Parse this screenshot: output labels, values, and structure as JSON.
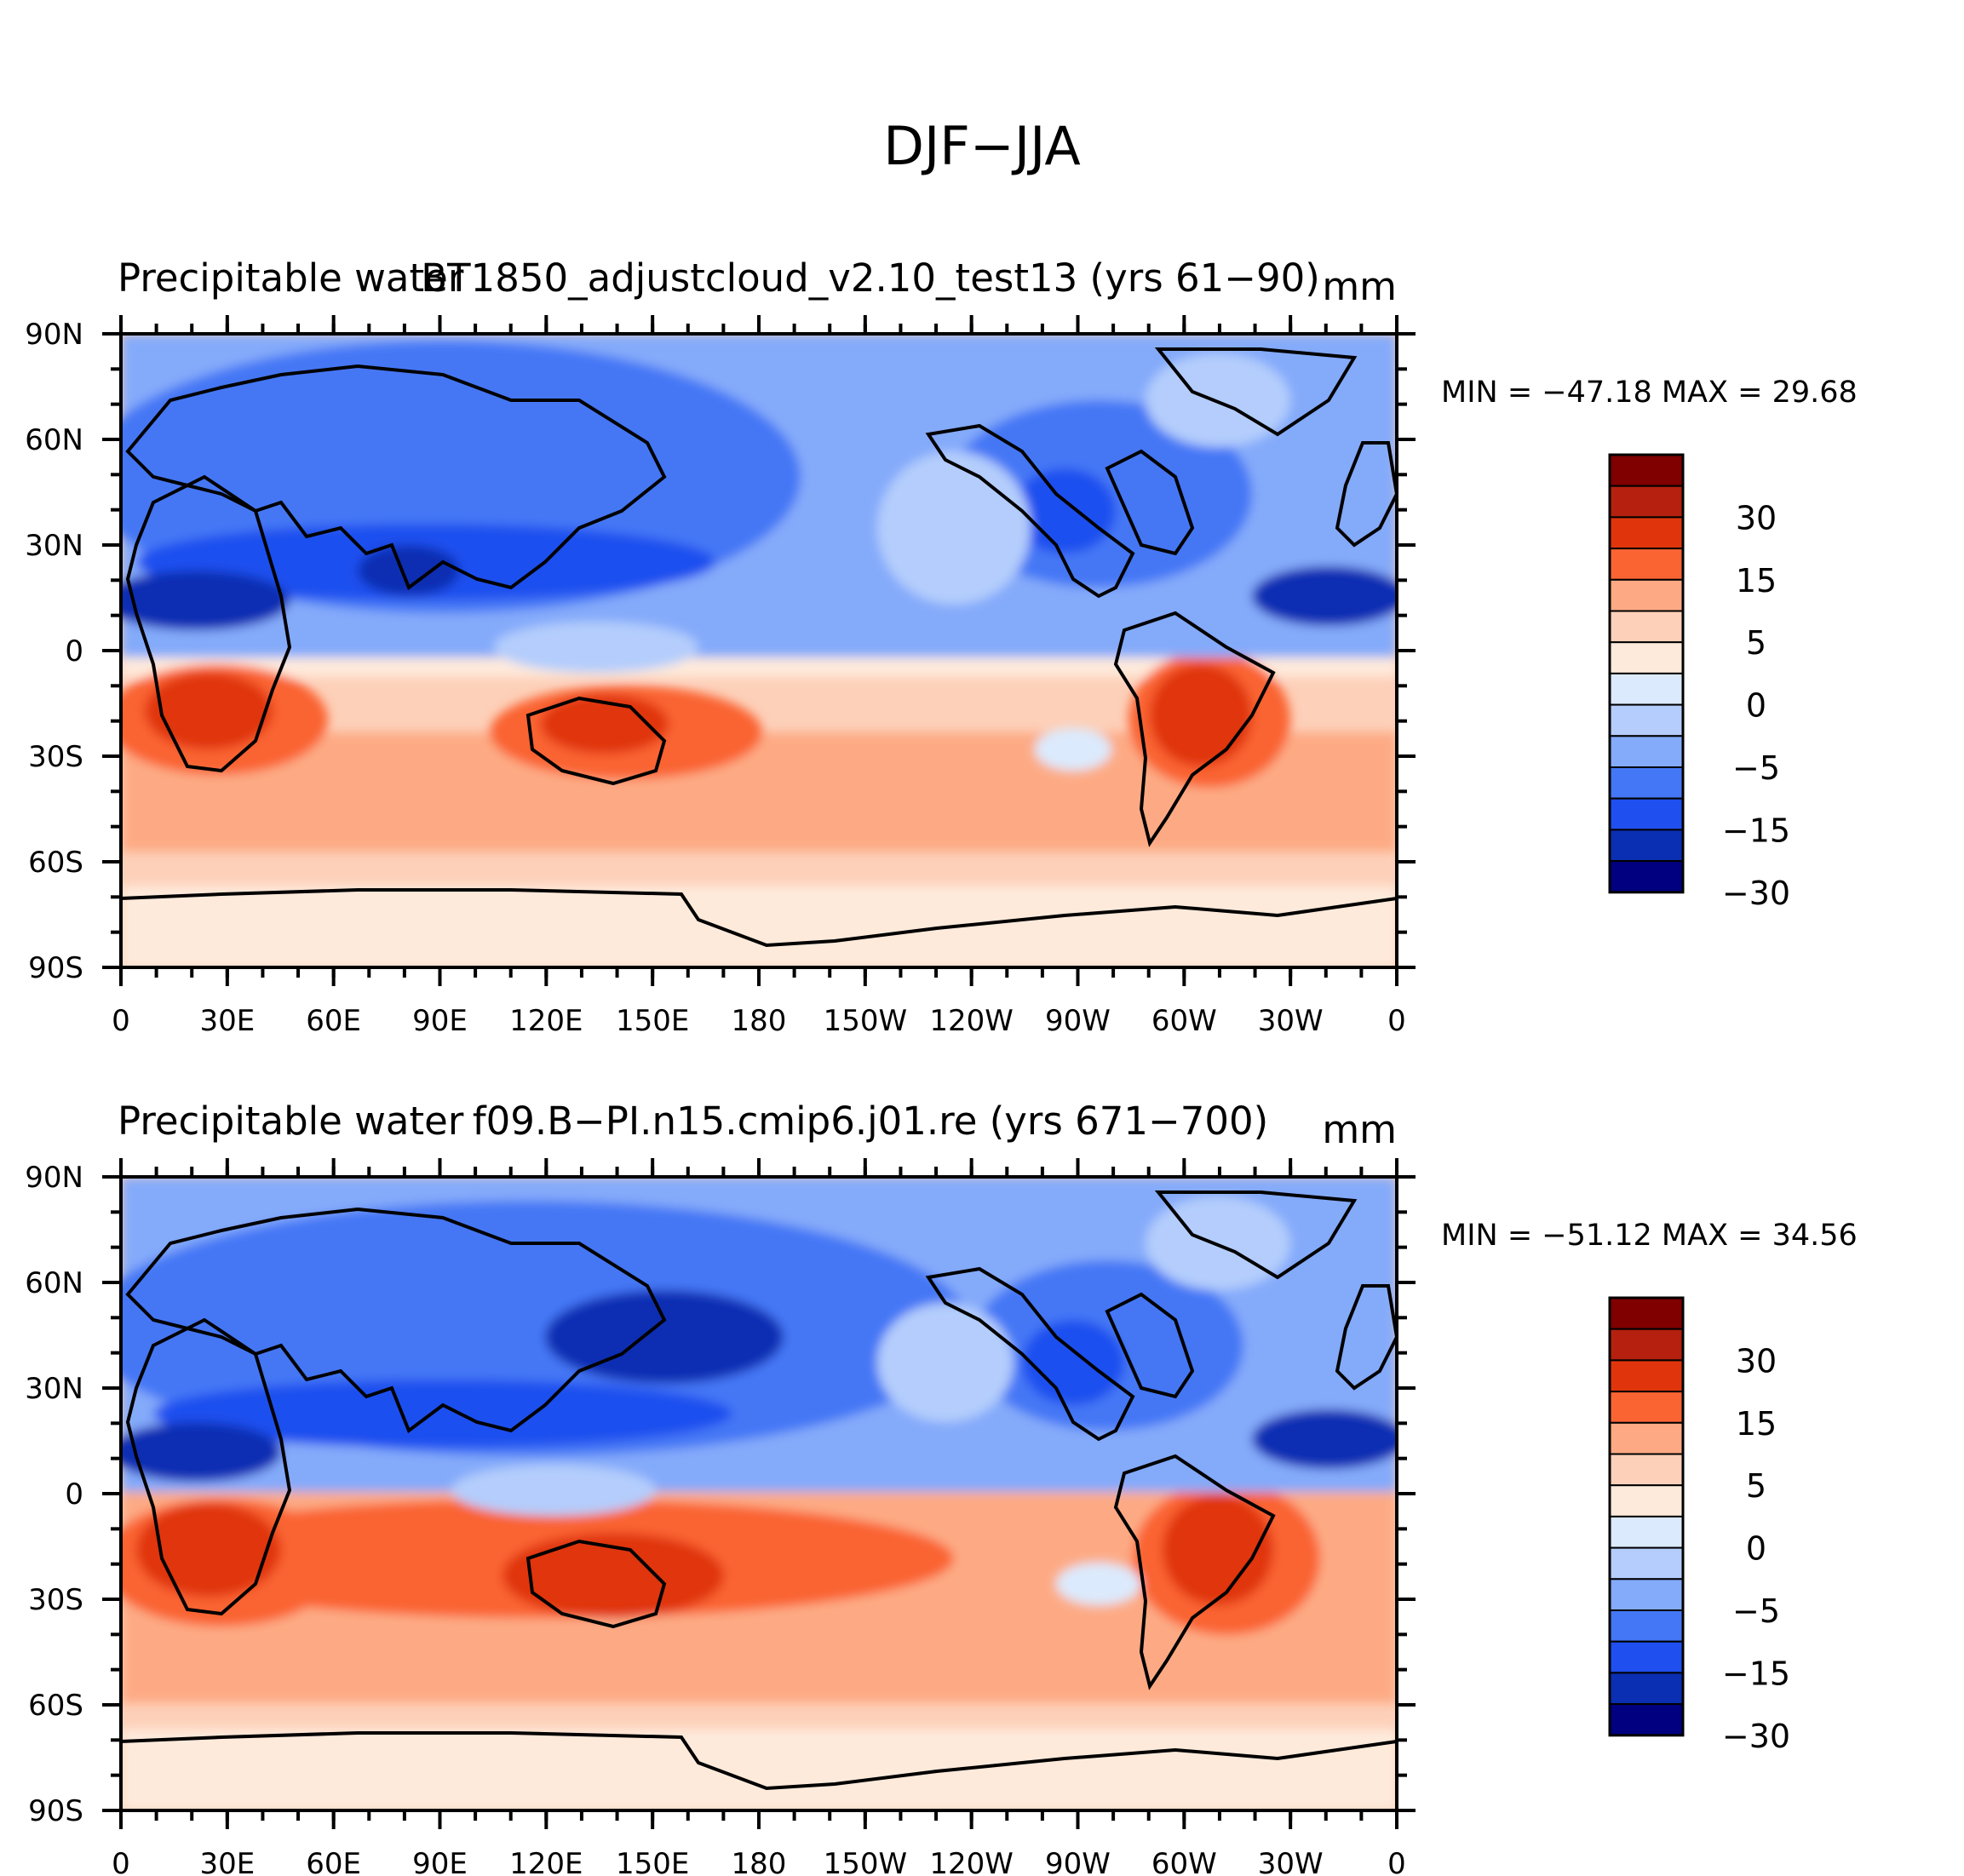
{
  "figure": {
    "title": "DJF−JJA",
    "xticks": [
      "0",
      "30E",
      "60E",
      "90E",
      "120E",
      "150E",
      "180",
      "150W",
      "120W",
      "90W",
      "60W",
      "30W",
      "0"
    ],
    "yticks": [
      "90N",
      "60N",
      "30N",
      "0",
      "30S",
      "60S",
      "90S"
    ],
    "colorbar": {
      "labels": [
        "30",
        "15",
        "5",
        "0",
        "−5",
        "−15",
        "−30"
      ],
      "colors": [
        "#800000",
        "#b5200f",
        "#e0350c",
        "#fa6433",
        "#fdaa84",
        "#fdd0b9",
        "#feeadb",
        "#dbeafd",
        "#b4cdfc",
        "#84aafa",
        "#4477f5",
        "#1f4fef",
        "#0a2fb3",
        "#000080"
      ]
    }
  },
  "panels": [
    {
      "left_label": "Precipitable water",
      "center_label": "BT1850_adjustcloud_v2.10_test13 (yrs 61−90)",
      "units": "mm",
      "stats": "MIN = −47.18 MAX =   29.68"
    },
    {
      "left_label": "Precipitable water",
      "center_label": "f09.B−PI.n15.cmip6.j01.re (yrs 671−700)",
      "units": "mm",
      "stats": "MIN = −51.12 MAX =   34.56"
    }
  ]
}
